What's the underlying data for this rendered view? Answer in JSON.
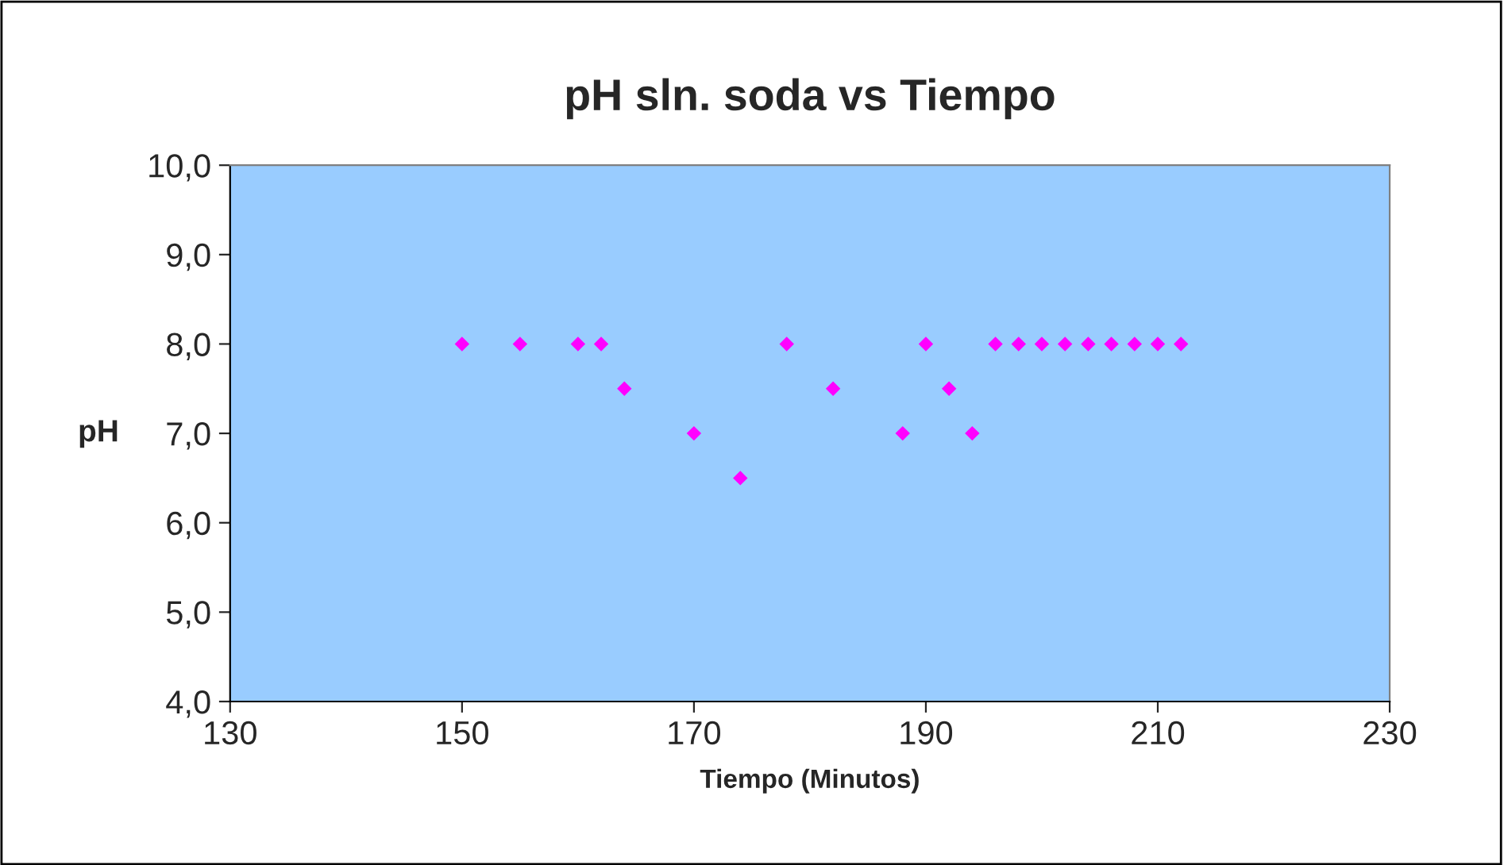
{
  "chart_data": {
    "type": "scatter",
    "title": "pH sln. soda vs Tiempo",
    "xlabel": "Tiempo (Minutos)",
    "ylabel": "pH",
    "x": [
      150,
      155,
      160,
      162,
      164,
      170,
      174,
      178,
      182,
      188,
      190,
      192,
      194,
      196,
      198,
      200,
      202,
      204,
      206,
      208,
      210,
      212
    ],
    "series": [
      {
        "color": "#ff00ff",
        "values": [
          8.0,
          8.0,
          8.0,
          8.0,
          7.5,
          7.0,
          6.5,
          8.0,
          7.5,
          7.0,
          8.0,
          7.5,
          7.0,
          8.0,
          8.0,
          8.0,
          8.0,
          8.0,
          8.0,
          8.0,
          8.0,
          8.0
        ]
      }
    ],
    "xlim": [
      130,
      230
    ],
    "xticks": [
      130,
      150,
      170,
      190,
      210,
      230
    ],
    "ylim": [
      4,
      10
    ],
    "yticks": [
      {
        "value": 4,
        "label": "4,0"
      },
      {
        "value": 5,
        "label": "5,0"
      },
      {
        "value": 6,
        "label": "6,0"
      },
      {
        "value": 7,
        "label": "7,0"
      },
      {
        "value": 8,
        "label": "8,0"
      },
      {
        "value": 9,
        "label": "9,0"
      },
      {
        "value": 10,
        "label": "10,0"
      }
    ],
    "marker": "diamond",
    "grid": false,
    "legend": false
  }
}
